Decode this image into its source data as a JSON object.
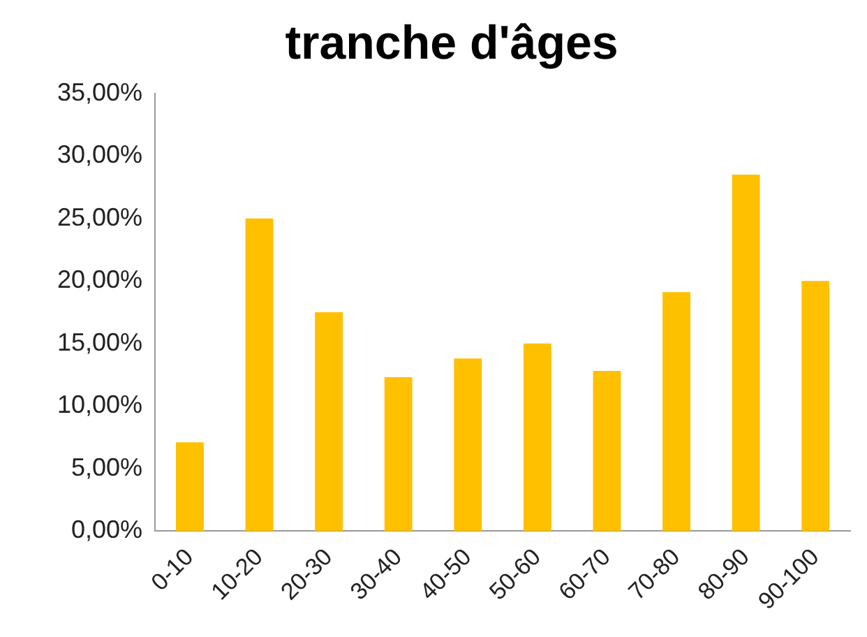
{
  "chart_data": {
    "type": "bar",
    "title": "tranche d'âges",
    "categories": [
      "0-10",
      "10-20",
      "20-30",
      "30-40",
      "40-50",
      "50-60",
      "60-70",
      "70-80",
      "80-90",
      "90-100"
    ],
    "values": [
      7.1,
      25.0,
      17.5,
      12.3,
      13.8,
      15.0,
      12.8,
      19.1,
      28.5,
      20.0
    ],
    "color": "#ffc000",
    "ylim": [
      0,
      35
    ],
    "yticks": [
      {
        "value": 0,
        "label": "0,00%"
      },
      {
        "value": 5,
        "label": "5,00%"
      },
      {
        "value": 10,
        "label": "10,00%"
      },
      {
        "value": 15,
        "label": "15,00%"
      },
      {
        "value": 20,
        "label": "20,00%"
      },
      {
        "value": 25,
        "label": "25,00%"
      },
      {
        "value": 30,
        "label": "30,00%"
      },
      {
        "value": 35,
        "label": "35,00%"
      }
    ],
    "grid": false,
    "legend": false
  }
}
